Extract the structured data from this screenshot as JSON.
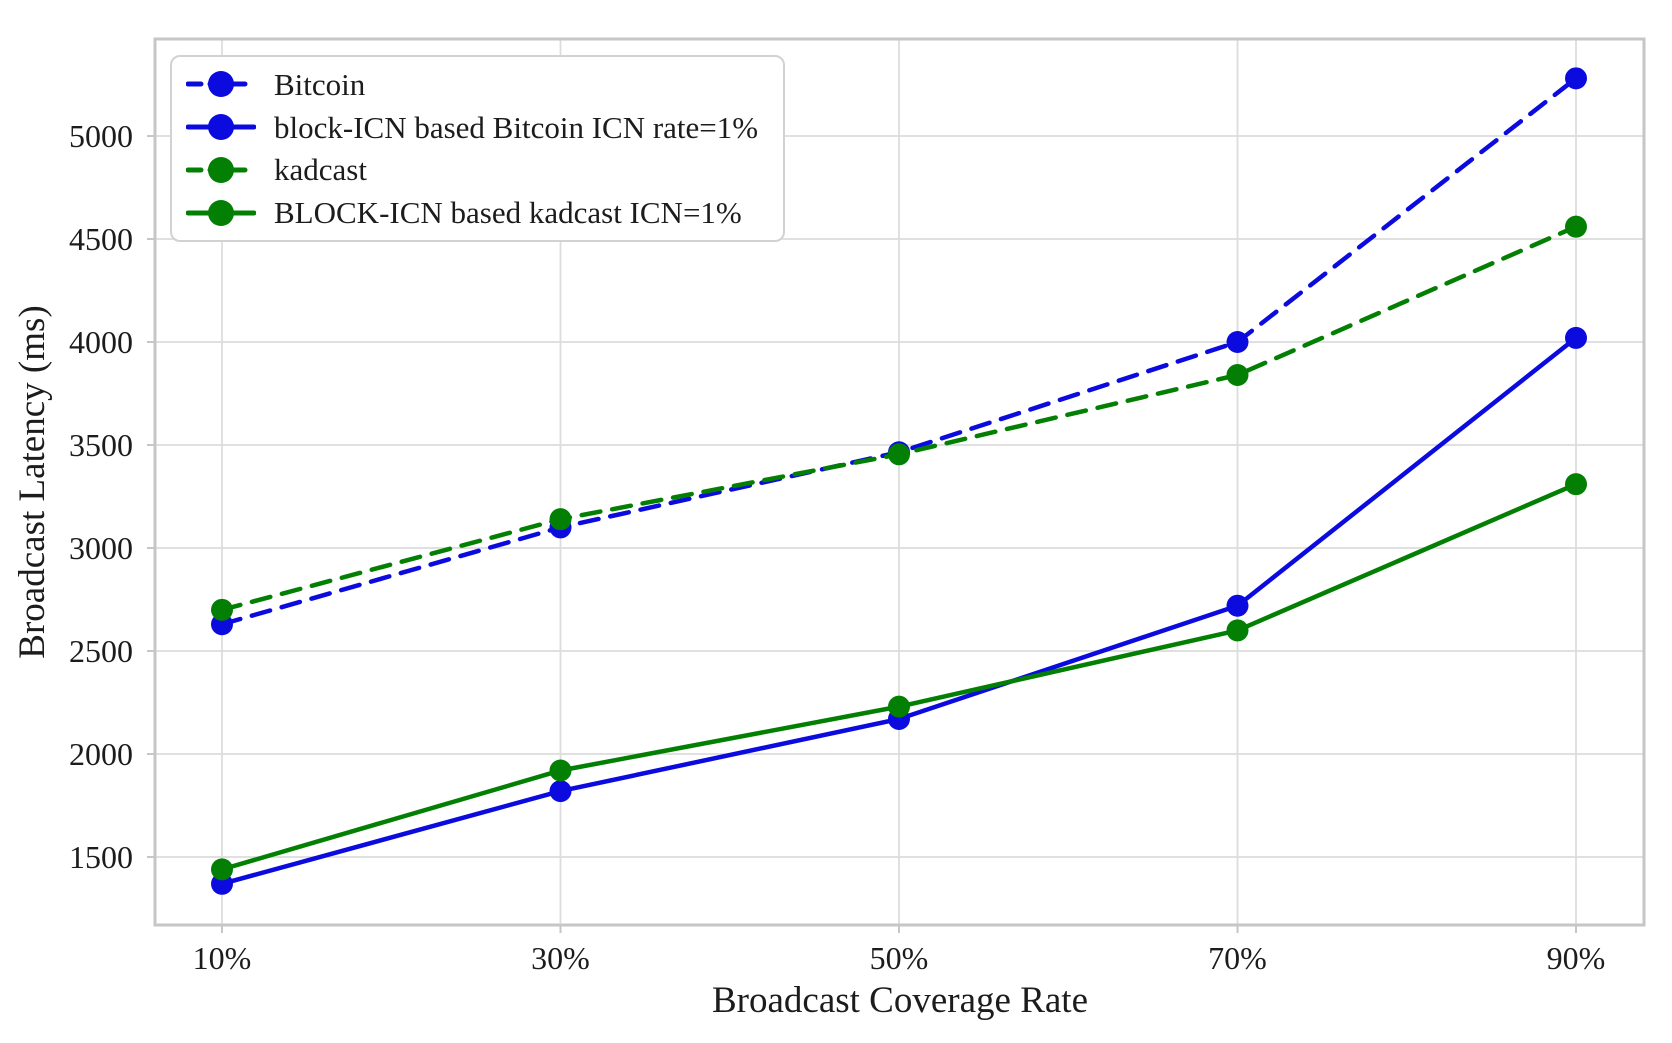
{
  "chart_data": {
    "type": "line",
    "title": "",
    "xlabel": "Broadcast Coverage Rate",
    "ylabel": "Broadcast Latency (ms)",
    "categories": [
      "10%",
      "30%",
      "50%",
      "70%",
      "90%"
    ],
    "y_ticks": [
      1500,
      2000,
      2500,
      3000,
      3500,
      4000,
      4500,
      5000
    ],
    "ylim": [
      1170,
      5471
    ],
    "grid": true,
    "legend_position": "upper-left",
    "series": [
      {
        "name": "Bitcoin",
        "color": "#0b0bdf",
        "line_style": "dashed",
        "marker": "circle",
        "values": [
          2630,
          3100,
          3465,
          4000,
          5280
        ]
      },
      {
        "name": "block-ICN based Bitcoin ICN rate=1%",
        "color": "#0b0bdf",
        "line_style": "solid",
        "marker": "circle",
        "values": [
          1370,
          1820,
          2170,
          2720,
          4020
        ]
      },
      {
        "name": "kadcast",
        "color": "#038003",
        "line_style": "dashed",
        "marker": "circle",
        "values": [
          2700,
          3140,
          3455,
          3840,
          4560
        ]
      },
      {
        "name": "BLOCK-ICN based kadcast ICN=1%",
        "color": "#038003",
        "line_style": "solid",
        "marker": "circle",
        "values": [
          1440,
          1920,
          2230,
          2600,
          3310
        ]
      }
    ],
    "style": {
      "grid_color": "#dcdcdc",
      "spine_color": "#c6c6c6",
      "text_color": "#1c1c1c",
      "background": "#ffffff"
    }
  }
}
